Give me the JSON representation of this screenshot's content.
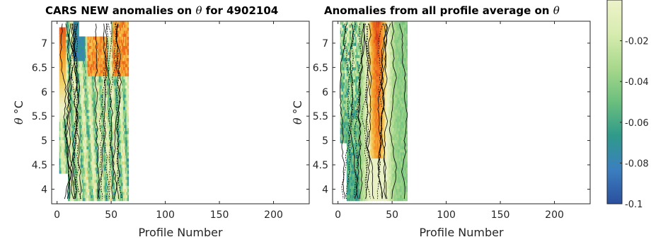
{
  "chart_data": [
    {
      "type": "heatmap",
      "title": "CARS NEW anomalies on θ for 4902104",
      "xlabel": "Profile Number",
      "ylabel": "θ °C",
      "xlim": [
        -5,
        233
      ],
      "ylim": [
        3.7,
        7.45
      ],
      "xticks": [
        "0",
        "50",
        "100",
        "150",
        "200"
      ],
      "yticks": [
        "4",
        "4.5",
        "5",
        "5.5",
        "6",
        "6.5",
        "7"
      ],
      "data_x_range": [
        2,
        66
      ],
      "contours": "black",
      "grid": false
    },
    {
      "type": "heatmap",
      "title": "Anomalies from all profile average on θ",
      "xlabel": "Profile Number",
      "ylabel": "θ °C",
      "xlim": [
        -5,
        233
      ],
      "ylim": [
        3.7,
        7.45
      ],
      "xticks": [
        "0",
        "50",
        "100",
        "150",
        "200"
      ],
      "yticks": [
        "4",
        "4.5",
        "5",
        "5.5",
        "6",
        "6.5",
        "7"
      ],
      "data_x_range": [
        2,
        64
      ],
      "contours": "black",
      "grid": false
    }
  ],
  "colorbar": {
    "ticks": [
      "-0.02",
      "-0.04",
      "-0.06",
      "-0.08",
      "-0.1"
    ],
    "values": [
      -0.02,
      -0.04,
      -0.06,
      -0.08,
      -0.1
    ],
    "range": [
      -0.1,
      0.0
    ],
    "colors": [
      "#2b4f9e",
      "#3b7fc0",
      "#2f9a8a",
      "#6bbf7d",
      "#a8d88c",
      "#d7ecb0",
      "#eef2c9"
    ]
  },
  "labels": {
    "title_left_text": "CARS NEW anomalies on ",
    "title_left_theta": "θ",
    "title_left_suffix": " for 4902104",
    "title_right_text": "Anomalies from all profile average on ",
    "title_right_theta": "θ",
    "ylabel_theta": "θ",
    "ylabel_unit": " °C",
    "xlabel": "Profile Number"
  }
}
